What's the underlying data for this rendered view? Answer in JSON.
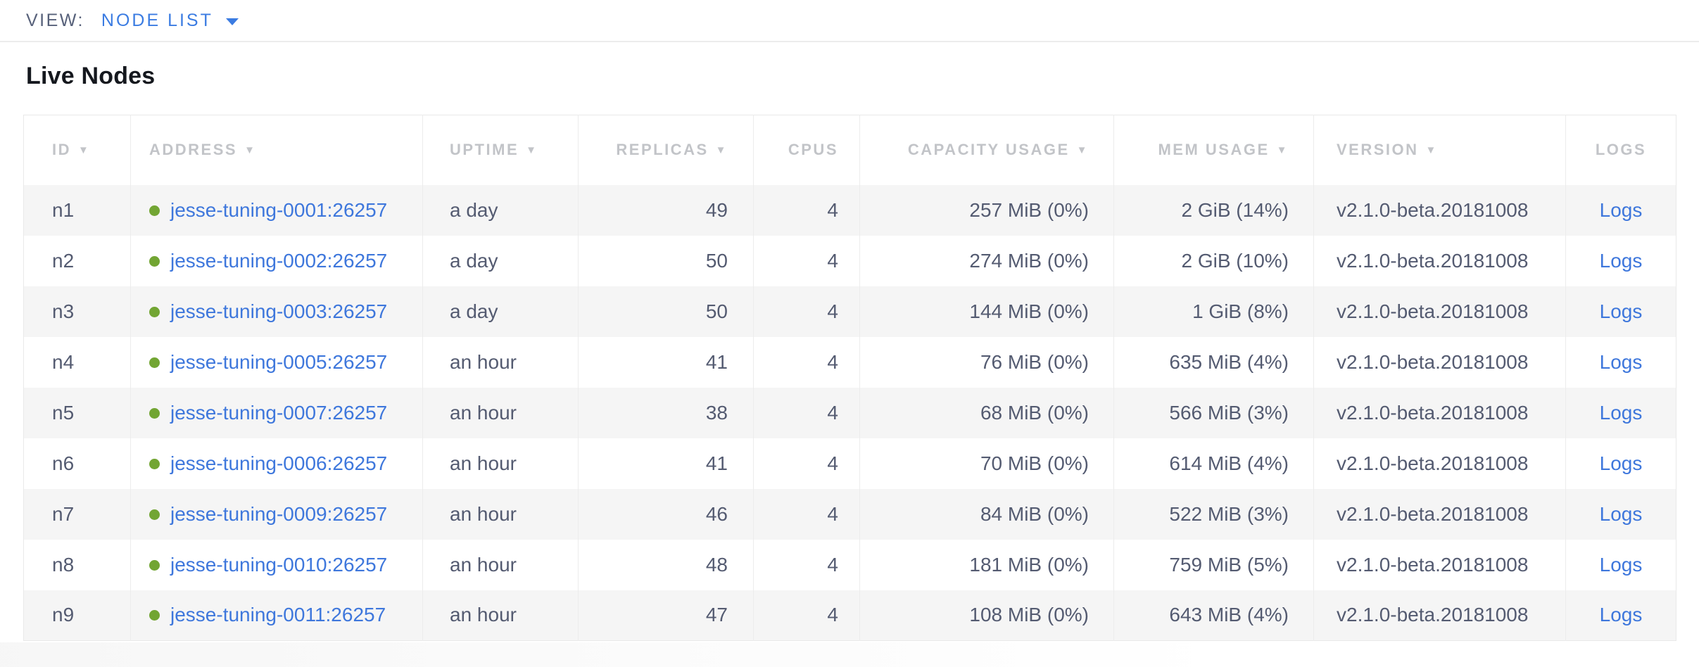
{
  "toolbar": {
    "view_label": "VIEW:",
    "view_value": "NODE LIST"
  },
  "page": {
    "title": "Live Nodes"
  },
  "table": {
    "columns": [
      {
        "label": "ID",
        "sortable": true
      },
      {
        "label": "ADDRESS",
        "sortable": true
      },
      {
        "label": "UPTIME",
        "sortable": true
      },
      {
        "label": "REPLICAS",
        "sortable": true
      },
      {
        "label": "CPUS",
        "sortable": false
      },
      {
        "label": "CAPACITY USAGE",
        "sortable": true
      },
      {
        "label": "MEM USAGE",
        "sortable": true
      },
      {
        "label": "VERSION",
        "sortable": true
      },
      {
        "label": "LOGS",
        "sortable": false
      }
    ],
    "rows": [
      {
        "id": "n1",
        "status": "live",
        "address": "jesse-tuning-0001:26257",
        "uptime": "a day",
        "replicas": "49",
        "cpus": "4",
        "capacity_usage": "257 MiB (0%)",
        "mem_usage": "2 GiB (14%)",
        "version": "v2.1.0-beta.20181008",
        "logs_label": "Logs"
      },
      {
        "id": "n2",
        "status": "live",
        "address": "jesse-tuning-0002:26257",
        "uptime": "a day",
        "replicas": "50",
        "cpus": "4",
        "capacity_usage": "274 MiB (0%)",
        "mem_usage": "2 GiB (10%)",
        "version": "v2.1.0-beta.20181008",
        "logs_label": "Logs"
      },
      {
        "id": "n3",
        "status": "live",
        "address": "jesse-tuning-0003:26257",
        "uptime": "a day",
        "replicas": "50",
        "cpus": "4",
        "capacity_usage": "144 MiB (0%)",
        "mem_usage": "1 GiB (8%)",
        "version": "v2.1.0-beta.20181008",
        "logs_label": "Logs"
      },
      {
        "id": "n4",
        "status": "live",
        "address": "jesse-tuning-0005:26257",
        "uptime": "an hour",
        "replicas": "41",
        "cpus": "4",
        "capacity_usage": "76 MiB (0%)",
        "mem_usage": "635 MiB (4%)",
        "version": "v2.1.0-beta.20181008",
        "logs_label": "Logs"
      },
      {
        "id": "n5",
        "status": "live",
        "address": "jesse-tuning-0007:26257",
        "uptime": "an hour",
        "replicas": "38",
        "cpus": "4",
        "capacity_usage": "68 MiB (0%)",
        "mem_usage": "566 MiB (3%)",
        "version": "v2.1.0-beta.20181008",
        "logs_label": "Logs"
      },
      {
        "id": "n6",
        "status": "live",
        "address": "jesse-tuning-0006:26257",
        "uptime": "an hour",
        "replicas": "41",
        "cpus": "4",
        "capacity_usage": "70 MiB (0%)",
        "mem_usage": "614 MiB (4%)",
        "version": "v2.1.0-beta.20181008",
        "logs_label": "Logs"
      },
      {
        "id": "n7",
        "status": "live",
        "address": "jesse-tuning-0009:26257",
        "uptime": "an hour",
        "replicas": "46",
        "cpus": "4",
        "capacity_usage": "84 MiB (0%)",
        "mem_usage": "522 MiB (3%)",
        "version": "v2.1.0-beta.20181008",
        "logs_label": "Logs"
      },
      {
        "id": "n8",
        "status": "live",
        "address": "jesse-tuning-0010:26257",
        "uptime": "an hour",
        "replicas": "48",
        "cpus": "4",
        "capacity_usage": "181 MiB (0%)",
        "mem_usage": "759 MiB (5%)",
        "version": "v2.1.0-beta.20181008",
        "logs_label": "Logs"
      },
      {
        "id": "n9",
        "status": "live",
        "address": "jesse-tuning-0011:26257",
        "uptime": "an hour",
        "replicas": "47",
        "cpus": "4",
        "capacity_usage": "108 MiB (0%)",
        "mem_usage": "643 MiB (4%)",
        "version": "v2.1.0-beta.20181008",
        "logs_label": "Logs"
      }
    ]
  },
  "colors": {
    "accent_blue": "#3b7ce2",
    "link_blue": "#3e77dc",
    "status_green_live": "#72a533"
  }
}
